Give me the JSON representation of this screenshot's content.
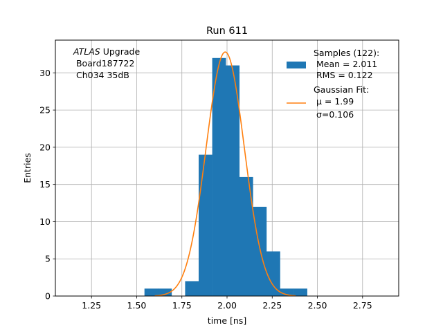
{
  "chart_data": {
    "type": "bar",
    "title": "Run 611",
    "xlabel": "time [ns]",
    "ylabel": "Entries",
    "xlim": [
      1.05,
      2.95
    ],
    "ylim": [
      0,
      34.4
    ],
    "grid": true,
    "x_ticks": [
      1.25,
      1.5,
      1.75,
      2.0,
      2.25,
      2.5,
      2.75
    ],
    "x_tick_labels": [
      "1.25",
      "1.50",
      "1.75",
      "2.00",
      "2.25",
      "2.50",
      "2.75"
    ],
    "y_ticks": [
      0,
      5,
      10,
      15,
      20,
      25,
      30
    ],
    "y_tick_labels": [
      "0",
      "5",
      "10",
      "15",
      "20",
      "25",
      "30"
    ],
    "histogram": {
      "bin_edges": [
        1.543,
        1.618,
        1.693,
        1.768,
        1.843,
        1.918,
        1.993,
        2.068,
        2.143,
        2.218,
        2.293,
        2.368,
        2.443
      ],
      "counts": [
        1,
        1,
        0,
        2,
        19,
        32,
        31,
        16,
        12,
        6,
        1,
        1
      ],
      "color": "#1f77b4"
    },
    "gaussian_fit": {
      "mu": 1.99,
      "sigma": 0.106,
      "amplitude": 32.8,
      "x_range": [
        1.6,
        2.38
      ],
      "color": "#ff7f0e"
    },
    "legend": {
      "placement": "top-right",
      "entries": [
        {
          "id": "samples",
          "lines": [
            "Samples (122):",
            " Mean = 2.011",
            " RMS = 0.122"
          ]
        },
        {
          "id": "fit",
          "lines": [
            "Gaussian Fit:",
            " μ = 1.99",
            " σ=0.106"
          ]
        }
      ]
    },
    "annotation": {
      "placement": "top-left",
      "lines": [
        {
          "italic": "ATLAS",
          "text": " Upgrade"
        },
        {
          "italic": "",
          "text": " Board187722"
        },
        {
          "italic": "",
          "text": " Ch034 35dB"
        }
      ]
    }
  }
}
